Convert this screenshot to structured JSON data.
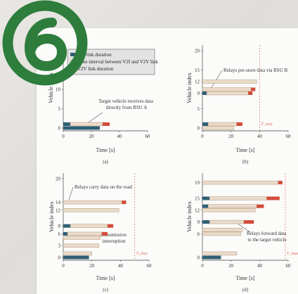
{
  "logo": {
    "digit": "6",
    "color": "#2e7d3c"
  },
  "colors": {
    "teal": "#2f5e73",
    "red": "#d24b3a",
    "beige": "#eadbc8",
    "outline": "#b09a84",
    "tmax": "#e06f5a"
  },
  "legend": {
    "entries": [
      {
        "label": "V2I link duration",
        "color": "#2f5e73"
      },
      {
        "label": "Time interval between V2I and V2V link",
        "color": "#eadbc8"
      },
      {
        "label": "V2V link duration",
        "color": "#d24b3a"
      }
    ]
  },
  "chart_data": [
    {
      "type": "bar",
      "subtitle": "(a)",
      "xlabel": "Time [s]",
      "ylabel": "Vehicle index",
      "xlim": [
        0,
        60
      ],
      "ylim": [
        0,
        20
      ],
      "xticks": [
        0,
        20,
        40,
        60
      ],
      "yticks": [
        0,
        5,
        10
      ],
      "annotations": [
        "Target vehicle receives data directly from RSU A"
      ],
      "bars": [
        {
          "y": 1,
          "segments": [
            {
              "kind": "v2i",
              "start": 0,
              "end": 5
            },
            {
              "kind": "gap",
              "start": 5,
              "end": 28
            },
            {
              "kind": "v2v",
              "start": 28,
              "end": 33
            }
          ]
        },
        {
          "y": 0,
          "segments": [
            {
              "kind": "v2i",
              "start": 0,
              "end": 26
            }
          ]
        }
      ]
    },
    {
      "type": "bar",
      "subtitle": "(b)",
      "xlabel": "Time [s]",
      "ylabel": "Vehicle index",
      "xlim": [
        0,
        60
      ],
      "ylim": [
        0,
        20
      ],
      "xticks": [
        0,
        20,
        40,
        60
      ],
      "yticks": [
        0,
        5,
        9,
        12,
        15,
        20
      ],
      "tmax": {
        "value": 40,
        "label": "T_max"
      },
      "annotations": [
        "Relays pre-store data via RSU B"
      ],
      "bars": [
        {
          "y": 12,
          "segments": [
            {
              "kind": "gap",
              "start": 0,
              "end": 38
            }
          ]
        },
        {
          "y": 10,
          "segments": [
            {
              "kind": "gap",
              "start": 0,
              "end": 34
            },
            {
              "kind": "v2v",
              "start": 34,
              "end": 37
            }
          ]
        },
        {
          "y": 9,
          "segments": [
            {
              "kind": "v2i",
              "start": 0,
              "end": 3
            },
            {
              "kind": "gap",
              "start": 3,
              "end": 32
            },
            {
              "kind": "v2v",
              "start": 32,
              "end": 35
            }
          ]
        },
        {
          "y": 1,
          "segments": [
            {
              "kind": "v2i",
              "start": 0,
              "end": 4
            },
            {
              "kind": "gap",
              "start": 4,
              "end": 24
            },
            {
              "kind": "v2v",
              "start": 24,
              "end": 28
            }
          ]
        },
        {
          "y": 0,
          "segments": [
            {
              "kind": "gap",
              "start": 0,
              "end": 22
            }
          ]
        }
      ]
    },
    {
      "type": "bar",
      "subtitle": "(c)",
      "xlabel": "Time [s]",
      "ylabel": "Vehicle index",
      "xlim": [
        0,
        60
      ],
      "ylim": [
        0,
        20
      ],
      "xticks": [
        0,
        20,
        40,
        60
      ],
      "yticks": [
        0,
        3,
        6,
        8,
        12,
        14,
        20
      ],
      "tmax": {
        "value": 50,
        "label": "T_max"
      },
      "annotations": [
        "Relays carry data on the road",
        "Transmission interruption"
      ],
      "bars": [
        {
          "y": 14,
          "segments": [
            {
              "kind": "gap",
              "start": 0,
              "end": 41
            },
            {
              "kind": "v2v",
              "start": 41,
              "end": 44
            }
          ]
        },
        {
          "y": 12,
          "segments": [
            {
              "kind": "gap",
              "start": 0,
              "end": 39
            }
          ]
        },
        {
          "y": 8,
          "segments": [
            {
              "kind": "v2i",
              "start": 0,
              "end": 5
            },
            {
              "kind": "gap",
              "start": 5,
              "end": 31
            },
            {
              "kind": "v2v",
              "start": 31,
              "end": 35
            }
          ]
        },
        {
          "y": 6,
          "segments": [
            {
              "kind": "v2i",
              "start": 0,
              "end": 3
            },
            {
              "kind": "gap",
              "start": 3,
              "end": 27
            },
            {
              "kind": "v2v",
              "start": 27,
              "end": 31
            }
          ]
        },
        {
          "y": 5,
          "segments": [
            {
              "kind": "gap",
              "start": 0,
              "end": 26
            }
          ]
        },
        {
          "y": 3,
          "segments": [
            {
              "kind": "gap",
              "start": 0,
              "end": 25
            }
          ]
        },
        {
          "y": 1,
          "segments": [
            {
              "kind": "gap",
              "start": 0,
              "end": 20
            }
          ]
        },
        {
          "y": 0,
          "segments": [
            {
              "kind": "v2i",
              "start": 0,
              "end": 18
            }
          ]
        }
      ]
    },
    {
      "type": "bar",
      "subtitle": "(d)",
      "xlabel": "Time [s]",
      "ylabel": "Vehicle index",
      "xlim": [
        0,
        60
      ],
      "ylim": [
        0,
        20
      ],
      "xticks": [
        0,
        20,
        40,
        60
      ],
      "yticks": [
        0,
        6,
        9,
        12,
        15,
        19
      ],
      "tmax": {
        "value": 58,
        "label": "T_max"
      },
      "annotations": [
        "Relays forward data to the target vehicle"
      ],
      "bars": [
        {
          "y": 19,
          "segments": [
            {
              "kind": "gap",
              "start": 0,
              "end": 53
            },
            {
              "kind": "v2v",
              "start": 53,
              "end": 56
            }
          ]
        },
        {
          "y": 15,
          "segments": [
            {
              "kind": "v2i",
              "start": 0,
              "end": 5
            },
            {
              "kind": "gap",
              "start": 5,
              "end": 45
            },
            {
              "kind": "v2v",
              "start": 45,
              "end": 54
            }
          ]
        },
        {
          "y": 13,
          "segments": [
            {
              "kind": "v2i",
              "start": 0,
              "end": 4
            },
            {
              "kind": "gap",
              "start": 4,
              "end": 38
            },
            {
              "kind": "v2v",
              "start": 38,
              "end": 43
            }
          ]
        },
        {
          "y": 12,
          "segments": [
            {
              "kind": "gap",
              "start": 0,
              "end": 37
            }
          ]
        },
        {
          "y": 9,
          "segments": [
            {
              "kind": "v2i",
              "start": 0,
              "end": 5
            },
            {
              "kind": "gap",
              "start": 5,
              "end": 29
            },
            {
              "kind": "v2v",
              "start": 29,
              "end": 36
            }
          ]
        },
        {
          "y": 7,
          "segments": [
            {
              "kind": "gap",
              "start": 0,
              "end": 28
            }
          ]
        },
        {
          "y": 6,
          "segments": [
            {
              "kind": "gap",
              "start": 0,
              "end": 27
            }
          ]
        },
        {
          "y": 1,
          "segments": [
            {
              "kind": "gap",
              "start": 0,
              "end": 24
            }
          ]
        },
        {
          "y": 0,
          "segments": [
            {
              "kind": "v2i",
              "start": 0,
              "end": 13
            }
          ]
        }
      ]
    }
  ]
}
